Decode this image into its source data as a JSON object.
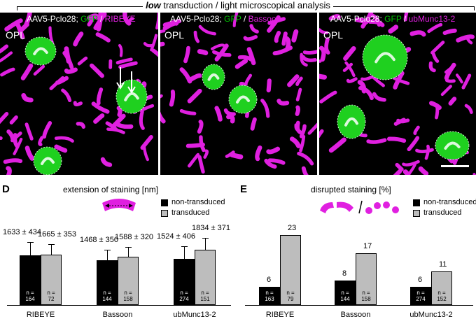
{
  "figure_title": {
    "emphasis": "low",
    "rest": " transduction / light microscopical analysis"
  },
  "panels": [
    {
      "letter": "A",
      "construct": "AAV5-Pclo28; ",
      "marker_g": "GFP",
      "sep": " / ",
      "marker_m": "RIBEYE",
      "region": "OPL"
    },
    {
      "letter": "B",
      "construct": "AAV5-Pclo28; ",
      "marker_g": "GFP",
      "sep": " / ",
      "marker_m": "Bassoon",
      "region": "OPL"
    },
    {
      "letter": "C",
      "construct": "AAV5-Pclo28; ",
      "marker_g": "GFP",
      "sep": " / ",
      "marker_m": "ubMunc13-2",
      "region": "OPL"
    }
  ],
  "colors": {
    "green": "#00c000",
    "magenta": "#e020e0",
    "black": "#000000",
    "gray": "#bdbdbd"
  },
  "legend": {
    "non_transduced": "non-transduced",
    "transduced": "transduced"
  },
  "chart_data": [
    {
      "type": "bar",
      "panel": "D",
      "title": "extension of staining [nm]",
      "categories": [
        "RIBEYE",
        "Bassoon",
        "ubMunc13-2"
      ],
      "series": [
        {
          "name": "non-transduced",
          "values": [
            1633,
            1468,
            1524
          ],
          "errors": [
            434,
            350,
            406
          ],
          "n": [
            "164",
            "144",
            "274"
          ],
          "labels": [
            "1633 ± 434",
            "1468 ± 350",
            "1524 ± 406"
          ]
        },
        {
          "name": "transduced",
          "values": [
            1665,
            1588,
            1834
          ],
          "errors": [
            353,
            320,
            371
          ],
          "n": [
            "72",
            "158",
            "151"
          ],
          "labels": [
            "1665 ± 353",
            "1588 ± 320",
            "1834 ± 371"
          ]
        }
      ],
      "n_prefix": "n =",
      "ylim": [
        0,
        3000
      ]
    },
    {
      "type": "bar",
      "panel": "E",
      "title": "disrupted staining [%]",
      "categories": [
        "RIBEYE",
        "Bassoon",
        "ubMunc13-2"
      ],
      "series": [
        {
          "name": "non-transduced",
          "values": [
            6,
            8,
            6
          ],
          "n": [
            "163",
            "144",
            "274"
          ],
          "labels": [
            "6",
            "8",
            "6"
          ]
        },
        {
          "name": "transduced",
          "values": [
            23,
            17,
            11
          ],
          "n": [
            "79",
            "158",
            "152"
          ],
          "labels": [
            "23",
            "17",
            "11"
          ]
        }
      ],
      "n_prefix": "n =",
      "ylim": [
        0,
        30
      ]
    }
  ]
}
